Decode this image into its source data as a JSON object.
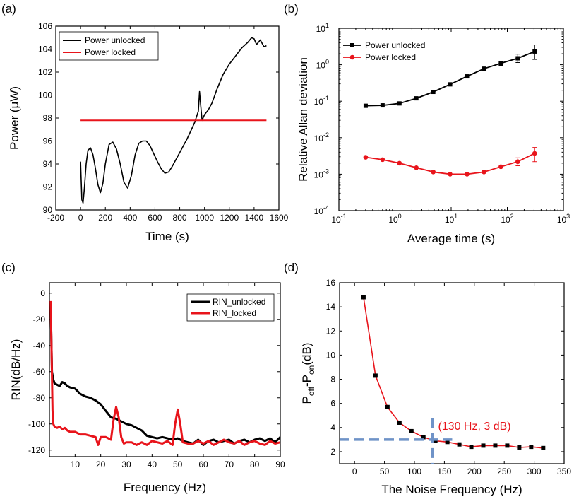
{
  "figure": {
    "panels": [
      "(a)",
      "(b)",
      "(c)",
      "(d)"
    ]
  },
  "colors": {
    "black": "#000000",
    "red": "#e8141b",
    "dashed": "#6f93c8"
  },
  "chart_data": [
    {
      "id": "a",
      "type": "line",
      "panel_label": "(a)",
      "xlabel": "Time (s)",
      "ylabel": "Power (μW)",
      "xlim": [
        -200,
        1600
      ],
      "ylim": [
        90,
        106
      ],
      "xticks": [
        "-200",
        "0",
        "200",
        "400",
        "600",
        "800",
        "1000",
        "1200",
        "1400",
        "1600"
      ],
      "yticks": [
        "90",
        "92",
        "94",
        "96",
        "98",
        "100",
        "102",
        "104",
        "106"
      ],
      "legend": [
        "Power unlocked",
        "Power locked"
      ],
      "series": [
        {
          "name": "Power unlocked",
          "color": "#000000",
          "x": [
            0,
            10,
            20,
            30,
            45,
            60,
            80,
            100,
            120,
            140,
            160,
            180,
            200,
            230,
            260,
            290,
            320,
            350,
            380,
            410,
            440,
            470,
            500,
            530,
            560,
            590,
            620,
            650,
            680,
            710,
            740,
            770,
            800,
            830,
            860,
            890,
            920,
            950,
            960,
            970,
            980,
            1000,
            1030,
            1060,
            1100,
            1150,
            1200,
            1250,
            1300,
            1350,
            1380,
            1400,
            1420,
            1450,
            1480,
            1500
          ],
          "values": [
            94.2,
            90.9,
            90.6,
            91.8,
            94.0,
            95.2,
            95.4,
            94.8,
            93.6,
            92.2,
            91.5,
            92.3,
            94.0,
            95.7,
            95.9,
            95.3,
            94.0,
            92.4,
            91.9,
            93.0,
            94.8,
            95.8,
            96.0,
            96.0,
            95.6,
            94.9,
            94.2,
            93.6,
            93.2,
            93.3,
            93.8,
            94.4,
            95.0,
            95.6,
            96.2,
            96.9,
            97.6,
            98.6,
            100.3,
            99.0,
            97.8,
            98.3,
            98.7,
            99.3,
            100.5,
            101.8,
            102.7,
            103.4,
            104.1,
            104.6,
            105.0,
            104.9,
            104.4,
            104.8,
            104.2,
            104.3
          ]
        },
        {
          "name": "Power locked",
          "color": "#e8141b",
          "x": [
            0,
            1500
          ],
          "values": [
            97.8,
            97.8
          ]
        }
      ]
    },
    {
      "id": "b",
      "type": "line",
      "panel_label": "(b)",
      "xlabel": "Average time (s)",
      "ylabel": "Relative Allan deviation",
      "xscale": "log",
      "yscale": "log",
      "xlim": [
        0.1,
        1000
      ],
      "ylim": [
        0.0001,
        10
      ],
      "xticks": [
        "10",
        "10",
        "10",
        "10",
        "10"
      ],
      "xtick_exponents": [
        "-1",
        "0",
        "1",
        "2",
        "3"
      ],
      "yticks": [
        "10",
        "10",
        "10",
        "10",
        "10",
        "10"
      ],
      "ytick_exponents": [
        "-4",
        "-3",
        "-2",
        "-1",
        "0",
        "1"
      ],
      "legend": [
        "Power unlocked",
        "Power locked"
      ],
      "series": [
        {
          "name": "Power unlocked",
          "color": "#000000",
          "x": [
            0.3,
            0.6,
            1.2,
            2.4,
            4.8,
            9.6,
            19.2,
            38.4,
            76.8,
            153.6,
            307.2
          ],
          "values": [
            0.075,
            0.077,
            0.087,
            0.12,
            0.18,
            0.29,
            0.48,
            0.78,
            1.1,
            1.5,
            2.3
          ],
          "error_low": [
            0,
            0,
            0,
            0,
            0,
            0,
            0,
            0,
            0.15,
            0.35,
            0.9
          ],
          "error_high": [
            0,
            0,
            0,
            0,
            0,
            0,
            0,
            0,
            0.15,
            0.45,
            1.2
          ]
        },
        {
          "name": "Power locked",
          "color": "#e8141b",
          "x": [
            0.3,
            0.6,
            1.2,
            2.4,
            4.8,
            9.6,
            19.2,
            38.4,
            76.8,
            153.6,
            307.2
          ],
          "values": [
            0.0029,
            0.0025,
            0.002,
            0.0015,
            0.00115,
            0.001,
            0.001,
            0.00115,
            0.0016,
            0.0022,
            0.0037
          ],
          "error_low": [
            0,
            0,
            0,
            0,
            0,
            0,
            0,
            0,
            0,
            0.0005,
            0.0015
          ],
          "error_high": [
            0,
            0,
            0,
            0,
            0,
            0,
            0,
            0,
            0,
            0.0006,
            0.0017
          ]
        }
      ]
    },
    {
      "id": "c",
      "type": "line",
      "panel_label": "(c)",
      "xlabel": "Frequency (Hz)",
      "ylabel": "RIN(dB/Hz)",
      "xlim": [
        0,
        90
      ],
      "ylim": [
        -125,
        8
      ],
      "xticks": [
        "10",
        "20",
        "30",
        "40",
        "50",
        "60",
        "70",
        "80",
        "90"
      ],
      "yticks": [
        "0",
        "-20",
        "-40",
        "-60",
        "-80",
        "-100",
        "-120"
      ],
      "legend": [
        "RIN_unlocked",
        "RIN_locked"
      ],
      "series": [
        {
          "name": "RIN_unlocked",
          "color": "#000000",
          "x": [
            0.5,
            1,
            1.5,
            2,
            3,
            4,
            5,
            6,
            7,
            8,
            10,
            12,
            14,
            16,
            18,
            20,
            22,
            24,
            26,
            28,
            30,
            32,
            34,
            36,
            38,
            40,
            42,
            44,
            46,
            48,
            50,
            52,
            54,
            56,
            58,
            60,
            62,
            64,
            66,
            68,
            70,
            72,
            74,
            76,
            78,
            80,
            82,
            84,
            86,
            88,
            90
          ],
          "values": [
            -8,
            -60,
            -66,
            -69,
            -70,
            -71,
            -68,
            -69,
            -71,
            -72,
            -73,
            -77,
            -79,
            -80,
            -82,
            -85,
            -90,
            -95,
            -96,
            -98,
            -100,
            -101,
            -103,
            -105,
            -109,
            -110,
            -111,
            -110,
            -111,
            -112,
            -111,
            -113,
            -114,
            -115,
            -112,
            -116,
            -113,
            -112,
            -114,
            -113,
            -112,
            -115,
            -113,
            -112,
            -114,
            -112,
            -111,
            -113,
            -111,
            -114,
            -110
          ]
        },
        {
          "name": "RIN_locked",
          "color": "#e8141b",
          "x": [
            0.5,
            0.8,
            1.2,
            1.5,
            2,
            3,
            4,
            5,
            6,
            7,
            8,
            10,
            12,
            14,
            16,
            18,
            19,
            20,
            22,
            24,
            25,
            26,
            27,
            28,
            29,
            30,
            32,
            34,
            36,
            38,
            40,
            42,
            44,
            46,
            48,
            49,
            50,
            51,
            52,
            54,
            56,
            58,
            60,
            62,
            64,
            66,
            68,
            70,
            72,
            74,
            76,
            78,
            80,
            82,
            84,
            86,
            88,
            90
          ],
          "values": [
            -6,
            -40,
            -90,
            -100,
            -102,
            -103,
            -102,
            -104,
            -103,
            -105,
            -106,
            -106,
            -108,
            -108,
            -109,
            -110,
            -116,
            -110,
            -110,
            -112,
            -97,
            -87,
            -95,
            -110,
            -115,
            -114,
            -114,
            -116,
            -114,
            -116,
            -113,
            -114,
            -115,
            -113,
            -116,
            -100,
            -89,
            -100,
            -114,
            -115,
            -115,
            -113,
            -115,
            -113,
            -116,
            -114,
            -112,
            -114,
            -115,
            -113,
            -116,
            -114,
            -113,
            -115,
            -116,
            -113,
            -115,
            -114
          ]
        }
      ]
    },
    {
      "id": "d",
      "type": "line",
      "panel_label": "(d)",
      "xlabel": "The Noise Frequency (Hz)",
      "ylabel_main": "P",
      "ylabel_sub1": "off",
      "ylabel_mid": "-P",
      "ylabel_sub2": "on",
      "ylabel_end": "(dB)",
      "xlim": [
        -25,
        350
      ],
      "ylim": [
        1,
        16
      ],
      "xticks": [
        "0",
        "50",
        "100",
        "150",
        "200",
        "250",
        "300",
        "350"
      ],
      "yticks": [
        "2",
        "4",
        "6",
        "8",
        "10",
        "12",
        "14",
        "16"
      ],
      "annotation": "(130 Hz, 3 dB)",
      "marker_point": {
        "x": 130,
        "y": 3
      },
      "series": [
        {
          "name": "P_off-P_on",
          "color": "#e8141b",
          "marker_color": "#000000",
          "x": [
            15,
            35,
            55,
            75,
            95,
            115,
            135,
            155,
            175,
            195,
            215,
            235,
            255,
            275,
            295,
            315
          ],
          "values": [
            14.8,
            8.3,
            5.7,
            4.4,
            3.7,
            3.2,
            2.9,
            2.8,
            2.6,
            2.4,
            2.5,
            2.5,
            2.5,
            2.35,
            2.4,
            2.3
          ]
        }
      ]
    }
  ]
}
